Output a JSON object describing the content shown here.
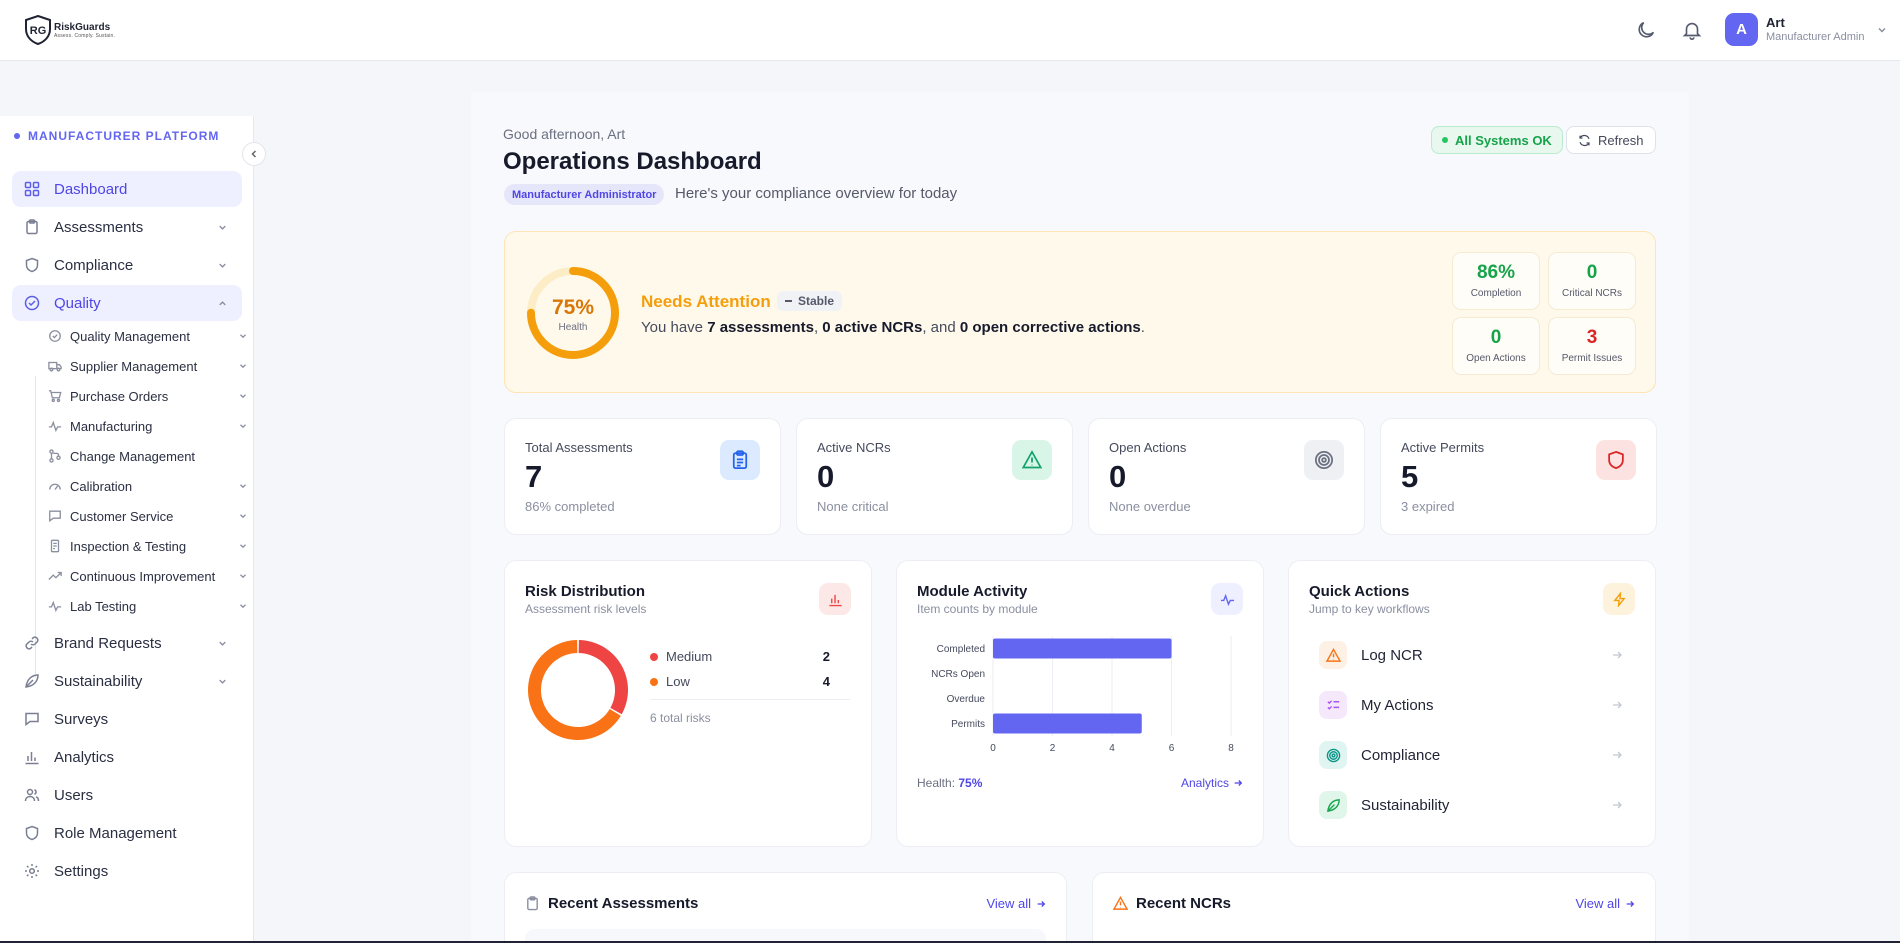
{
  "header": {
    "logo_name": "RiskGuards",
    "logo_tagline": "Assess. Comply. Sustain.",
    "user_initial": "A",
    "user_name": "Art",
    "user_role": "Manufacturer Admin"
  },
  "sidebar": {
    "platform_label": "MANUFACTURER PLATFORM",
    "items": [
      {
        "label": "Dashboard",
        "icon": "grid-icon"
      },
      {
        "label": "Assessments",
        "icon": "clipboard-icon"
      },
      {
        "label": "Compliance",
        "icon": "shield-icon"
      },
      {
        "label": "Quality",
        "icon": "check-circle-icon"
      },
      {
        "label": "Brand Requests",
        "icon": "link-icon"
      },
      {
        "label": "Sustainability",
        "icon": "leaf-icon"
      },
      {
        "label": "Surveys",
        "icon": "message-icon"
      },
      {
        "label": "Analytics",
        "icon": "bar-chart-icon"
      },
      {
        "label": "Users",
        "icon": "users-icon"
      },
      {
        "label": "Role Management",
        "icon": "shield-icon"
      },
      {
        "label": "Settings",
        "icon": "gear-icon"
      }
    ],
    "quality_sub": [
      {
        "label": "Quality Management"
      },
      {
        "label": "Supplier Management"
      },
      {
        "label": "Purchase Orders"
      },
      {
        "label": "Manufacturing"
      },
      {
        "label": "Change Management"
      },
      {
        "label": "Calibration"
      },
      {
        "label": "Customer Service"
      },
      {
        "label": "Inspection & Testing"
      },
      {
        "label": "Continuous Improvement"
      },
      {
        "label": "Lab Testing"
      }
    ]
  },
  "main": {
    "greeting": "Good afternoon, Art",
    "title": "Operations Dashboard",
    "role_badge": "Manufacturer Administrator",
    "subtitle": "Here's your compliance overview for today",
    "status_badge": "All Systems OK",
    "refresh_label": "Refresh"
  },
  "health": {
    "value_label": "75%",
    "value": 75,
    "caption": "Health",
    "status": "Needs Attention",
    "trend": "Stable",
    "summary_prefix": "You have ",
    "summary_assessments": "7 assessments",
    "summary_sep1": ", ",
    "summary_ncrs": "0 active NCRs",
    "summary_sep2": ", and ",
    "summary_actions": "0 open corrective actions",
    "summary_end": ".",
    "mini": [
      {
        "value": "86%",
        "label": "Completion",
        "color": "#16a34a"
      },
      {
        "value": "0",
        "label": "Critical NCRs",
        "color": "#16a34a"
      },
      {
        "value": "0",
        "label": "Open Actions",
        "color": "#16a34a"
      },
      {
        "value": "3",
        "label": "Permit Issues",
        "color": "#dc2626"
      }
    ]
  },
  "stats": [
    {
      "label": "Total Assessments",
      "value": "7",
      "sub": "86% completed",
      "icon": "clipboard-icon"
    },
    {
      "label": "Active NCRs",
      "value": "0",
      "sub": "None critical",
      "icon": "warning-icon"
    },
    {
      "label": "Open Actions",
      "value": "0",
      "sub": "None overdue",
      "icon": "target-icon"
    },
    {
      "label": "Active Permits",
      "value": "5",
      "sub": "3 expired",
      "icon": "shield-icon"
    }
  ],
  "risk": {
    "title": "Risk Distribution",
    "subtitle": "Assessment risk levels",
    "legend": [
      {
        "label": "Medium",
        "count": "2",
        "color": "#ef4444"
      },
      {
        "label": "Low",
        "count": "4",
        "color": "#f97316"
      }
    ],
    "total": "6 total risks"
  },
  "activity": {
    "title": "Module Activity",
    "subtitle": "Item counts by module",
    "footer_label": "Health: ",
    "footer_value": "75%",
    "link": "Analytics"
  },
  "quick": {
    "title": "Quick Actions",
    "subtitle": "Jump to key workflows",
    "items": [
      {
        "label": "Log NCR",
        "icon": "warning-icon"
      },
      {
        "label": "My Actions",
        "icon": "list-check-icon"
      },
      {
        "label": "Compliance",
        "icon": "target-icon"
      },
      {
        "label": "Sustainability",
        "icon": "leaf-icon"
      }
    ]
  },
  "recent": {
    "assessments_title": "Recent Assessments",
    "ncrs_title": "Recent NCRs",
    "view_all": "View all"
  },
  "chart_data": [
    {
      "type": "pie",
      "categories": [
        "Medium",
        "Low"
      ],
      "values": [
        2,
        4
      ],
      "colors": [
        "#ef4444",
        "#f97316"
      ]
    },
    {
      "type": "bar",
      "orientation": "horizontal",
      "categories": [
        "Completed",
        "NCRs Open",
        "Overdue",
        "Permits"
      ],
      "values": [
        6,
        0,
        0,
        5
      ],
      "xlim": [
        0,
        8
      ],
      "xticks": [
        "0",
        "2",
        "4",
        "6",
        "8"
      ],
      "grid": true,
      "color": "#6366f1"
    }
  ]
}
